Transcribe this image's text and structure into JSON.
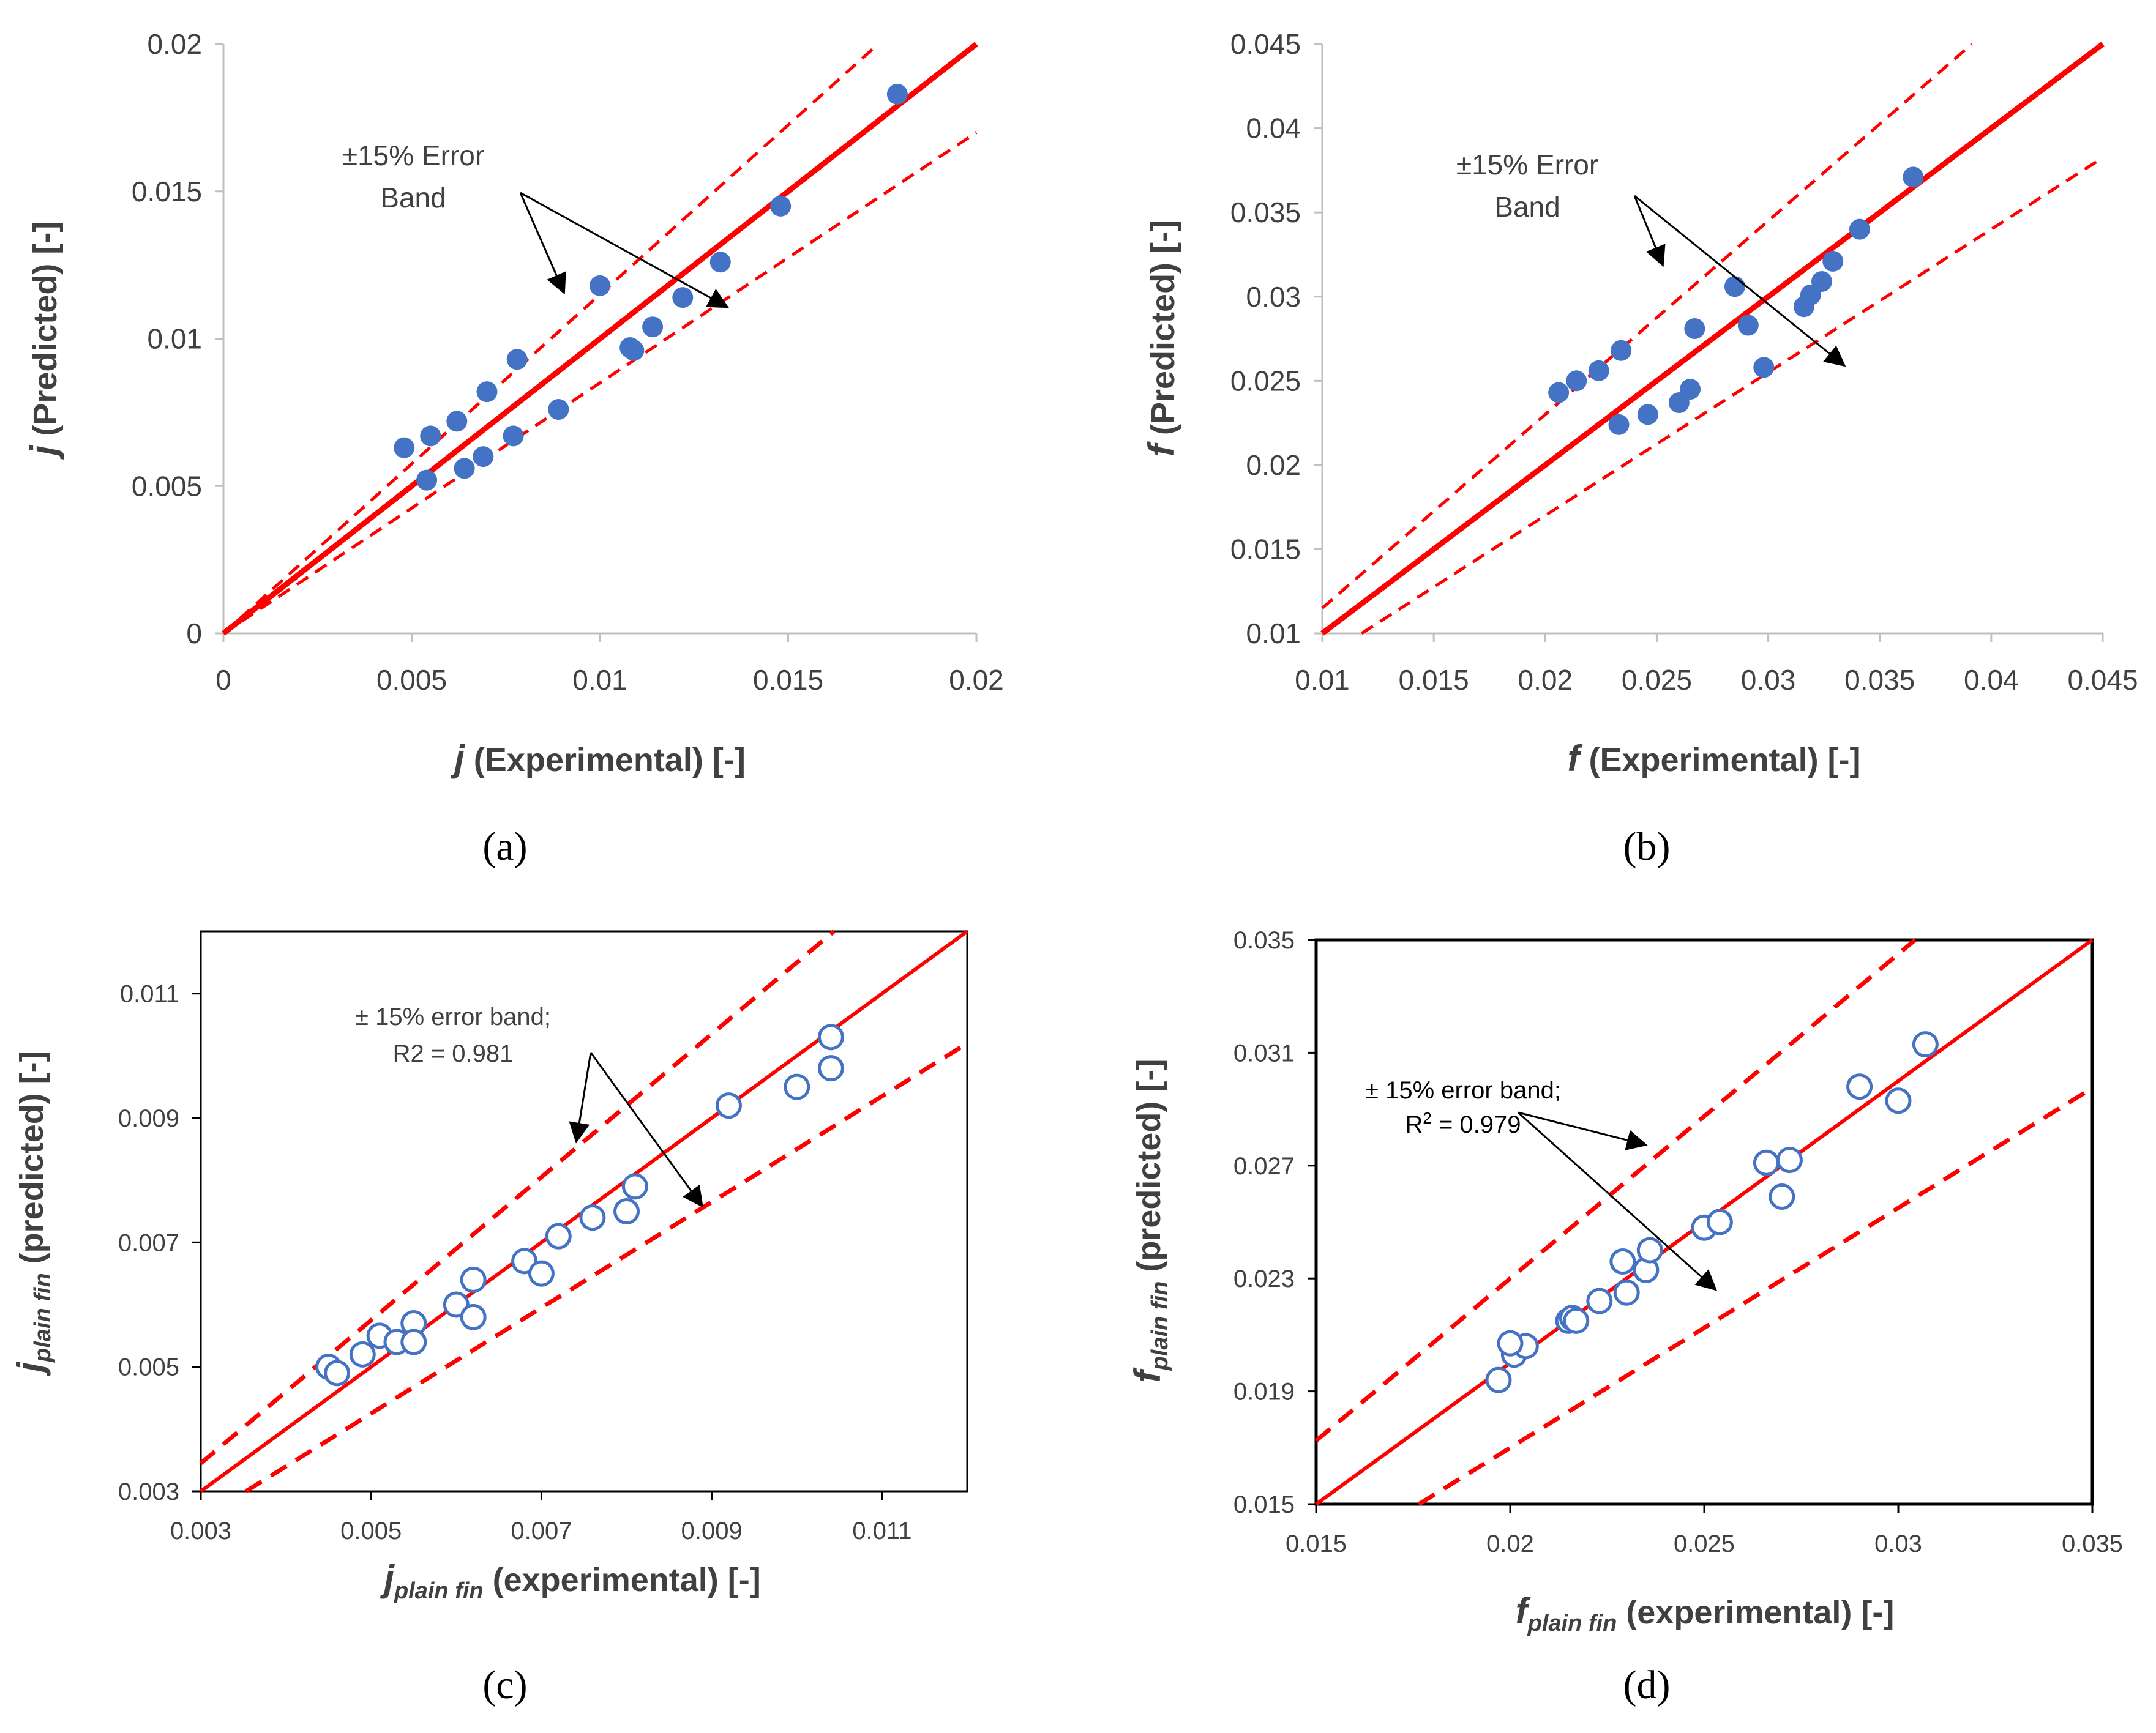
{
  "chart_data": [
    {
      "panel": "(a)",
      "type": "scatter",
      "xlabel_italic": "j",
      "xlabel_rest": " (Experimental) [-]",
      "ylabel_italic": "j",
      "ylabel_rest": " (Predicted) [-]",
      "xlim": [
        0,
        0.02
      ],
      "ylim": [
        0,
        0.02
      ],
      "xticks": [
        {
          "v": 0,
          "label": "0"
        },
        {
          "v": 0.005,
          "label": "0.005"
        },
        {
          "v": 0.01,
          "label": "0.01"
        },
        {
          "v": 0.015,
          "label": "0.015"
        },
        {
          "v": 0.02,
          "label": "0.02"
        }
      ],
      "yticks": [
        {
          "v": 0,
          "label": "0"
        },
        {
          "v": 0.005,
          "label": "0.005"
        },
        {
          "v": 0.01,
          "label": "0.01"
        },
        {
          "v": 0.015,
          "label": "0.015"
        },
        {
          "v": 0.02,
          "label": "0.02"
        }
      ],
      "annotation_lines": [
        "±15% Error",
        "Band"
      ],
      "marker": "filled",
      "color": "#4472c4",
      "line_color": "#ff0000",
      "frame": false,
      "points": [
        [
          0.0048,
          0.0063
        ],
        [
          0.0055,
          0.0067
        ],
        [
          0.0054,
          0.0052
        ],
        [
          0.0062,
          0.0072
        ],
        [
          0.0064,
          0.0056
        ],
        [
          0.0069,
          0.006
        ],
        [
          0.007,
          0.0082
        ],
        [
          0.0077,
          0.0067
        ],
        [
          0.0078,
          0.0093
        ],
        [
          0.0089,
          0.0076
        ],
        [
          0.01,
          0.0118
        ],
        [
          0.0108,
          0.0097
        ],
        [
          0.0109,
          0.0096
        ],
        [
          0.0114,
          0.0104
        ],
        [
          0.0122,
          0.0114
        ],
        [
          0.0132,
          0.0126
        ],
        [
          0.0148,
          0.0145
        ],
        [
          0.0179,
          0.0183
        ]
      ]
    },
    {
      "panel": "(b)",
      "type": "scatter",
      "xlabel_italic": "f",
      "xlabel_rest": " (Experimental) [-]",
      "ylabel_italic": "f",
      "ylabel_rest": " (Predicted) [-]",
      "xlim": [
        0.01,
        0.045
      ],
      "ylim": [
        0.01,
        0.045
      ],
      "xticks": [
        {
          "v": 0.01,
          "label": "0.01"
        },
        {
          "v": 0.015,
          "label": "0.015"
        },
        {
          "v": 0.02,
          "label": "0.02"
        },
        {
          "v": 0.025,
          "label": "0.025"
        },
        {
          "v": 0.03,
          "label": "0.03"
        },
        {
          "v": 0.035,
          "label": "0.035"
        },
        {
          "v": 0.04,
          "label": "0.04"
        },
        {
          "v": 0.045,
          "label": "0.045"
        }
      ],
      "yticks": [
        {
          "v": 0.01,
          "label": "0.01"
        },
        {
          "v": 0.015,
          "label": "0.015"
        },
        {
          "v": 0.02,
          "label": "0.02"
        },
        {
          "v": 0.025,
          "label": "0.025"
        },
        {
          "v": 0.03,
          "label": "0.03"
        },
        {
          "v": 0.035,
          "label": "0.035"
        },
        {
          "v": 0.04,
          "label": "0.04"
        },
        {
          "v": 0.045,
          "label": "0.045"
        }
      ],
      "annotation_lines": [
        "±15% Error",
        "Band"
      ],
      "marker": "filled",
      "color": "#4472c4",
      "line_color": "#ff0000",
      "frame": false,
      "points": [
        [
          0.0206,
          0.0243
        ],
        [
          0.0214,
          0.025
        ],
        [
          0.0224,
          0.0256
        ],
        [
          0.0233,
          0.0224
        ],
        [
          0.0234,
          0.0268
        ],
        [
          0.0246,
          0.023
        ],
        [
          0.026,
          0.0237
        ],
        [
          0.0265,
          0.0245
        ],
        [
          0.0267,
          0.0281
        ],
        [
          0.0285,
          0.0306
        ],
        [
          0.0291,
          0.0283
        ],
        [
          0.0298,
          0.0258
        ],
        [
          0.0316,
          0.0294
        ],
        [
          0.0319,
          0.0301
        ],
        [
          0.0324,
          0.0309
        ],
        [
          0.0329,
          0.0321
        ],
        [
          0.0341,
          0.034
        ],
        [
          0.0365,
          0.0371
        ]
      ]
    },
    {
      "panel": "(c)",
      "type": "scatter",
      "xlabel_italic": "j",
      "xlabel_sub": "plain fin",
      "xlabel_rest": " (experimental) [-]",
      "ylabel_italic": "j",
      "ylabel_sub": "plain fin",
      "ylabel_rest": " (predicted) [-]",
      "xlim": [
        0.003,
        0.012
      ],
      "ylim": [
        0.003,
        0.012
      ],
      "xticks": [
        {
          "v": 0.003,
          "label": "0.003"
        },
        {
          "v": 0.005,
          "label": "0.005"
        },
        {
          "v": 0.007,
          "label": "0.007"
        },
        {
          "v": 0.009,
          "label": "0.009"
        },
        {
          "v": 0.011,
          "label": "0.011"
        }
      ],
      "yticks": [
        {
          "v": 0.003,
          "label": "0.003"
        },
        {
          "v": 0.005,
          "label": "0.005"
        },
        {
          "v": 0.007,
          "label": "0.007"
        },
        {
          "v": 0.009,
          "label": "0.009"
        },
        {
          "v": 0.011,
          "label": "0.011"
        }
      ],
      "annotation_lines": [
        "± 15% error band;",
        "R2 = 0.981"
      ],
      "marker": "hollow",
      "color": "#4472c4",
      "line_color": "#ff0000",
      "frame": true,
      "points": [
        [
          0.0045,
          0.005
        ],
        [
          0.0046,
          0.0049
        ],
        [
          0.0049,
          0.0052
        ],
        [
          0.0051,
          0.0055
        ],
        [
          0.0053,
          0.0054
        ],
        [
          0.0055,
          0.0057
        ],
        [
          0.0055,
          0.0054
        ],
        [
          0.006,
          0.006
        ],
        [
          0.0062,
          0.0058
        ],
        [
          0.0062,
          0.0064
        ],
        [
          0.0068,
          0.0067
        ],
        [
          0.007,
          0.0065
        ],
        [
          0.0072,
          0.0071
        ],
        [
          0.0076,
          0.0074
        ],
        [
          0.008,
          0.0075
        ],
        [
          0.0081,
          0.0079
        ],
        [
          0.0092,
          0.0092
        ],
        [
          0.01,
          0.0095
        ],
        [
          0.0104,
          0.0098
        ],
        [
          0.0104,
          0.0103
        ]
      ]
    },
    {
      "panel": "(d)",
      "type": "scatter",
      "xlabel_italic": "f",
      "xlabel_sub": "plain fin",
      "xlabel_rest": " (experimental) [-]",
      "ylabel_italic": "f",
      "ylabel_sub": "plain fin",
      "ylabel_rest": " (predicted) [-]",
      "xlim": [
        0.015,
        0.035
      ],
      "ylim": [
        0.015,
        0.035
      ],
      "xticks": [
        {
          "v": 0.015,
          "label": "0.015"
        },
        {
          "v": 0.02,
          "label": "0.02"
        },
        {
          "v": 0.025,
          "label": "0.025"
        },
        {
          "v": 0.03,
          "label": "0.03"
        },
        {
          "v": 0.035,
          "label": "0.035"
        }
      ],
      "yticks": [
        {
          "v": 0.015,
          "label": "0.015"
        },
        {
          "v": 0.019,
          "label": "0.019"
        },
        {
          "v": 0.023,
          "label": "0.023"
        },
        {
          "v": 0.027,
          "label": "0.027"
        },
        {
          "v": 0.031,
          "label": "0.031"
        },
        {
          "v": 0.035,
          "label": "0.035"
        }
      ],
      "annotation_line1": "± 15% error band;",
      "annotation_r_prefix": "R",
      "annotation_r_sup": "2",
      "annotation_r_value": " = 0.979",
      "marker": "hollow",
      "color": "#4472c4",
      "line_color": "#ff0000",
      "frame": true,
      "points": [
        [
          0.0197,
          0.0194
        ],
        [
          0.0201,
          0.0203
        ],
        [
          0.0204,
          0.0206
        ],
        [
          0.02,
          0.0207
        ],
        [
          0.0215,
          0.0215
        ],
        [
          0.0216,
          0.0216
        ],
        [
          0.0217,
          0.0215
        ],
        [
          0.0223,
          0.0222
        ],
        [
          0.0229,
          0.0236
        ],
        [
          0.023,
          0.0225
        ],
        [
          0.0235,
          0.0233
        ],
        [
          0.0236,
          0.024
        ],
        [
          0.025,
          0.0248
        ],
        [
          0.0254,
          0.025
        ],
        [
          0.0266,
          0.0271
        ],
        [
          0.027,
          0.0259
        ],
        [
          0.0272,
          0.0272
        ],
        [
          0.029,
          0.0298
        ],
        [
          0.03,
          0.0293
        ],
        [
          0.0307,
          0.0313
        ]
      ]
    }
  ],
  "panel_labels": [
    "(a)",
    "(b)",
    "(c)",
    "(d)"
  ]
}
